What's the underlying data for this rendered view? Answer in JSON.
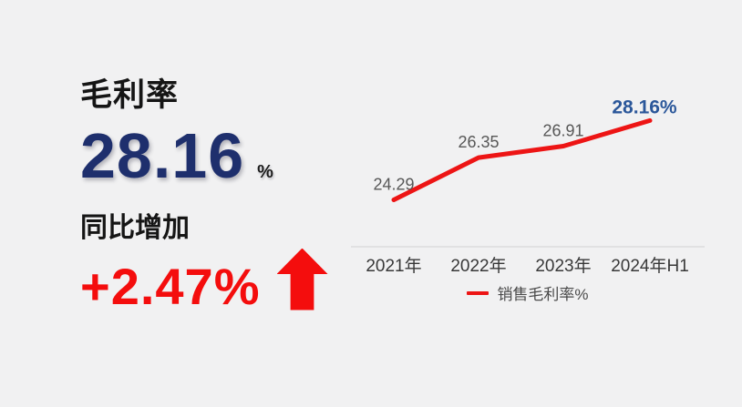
{
  "left": {
    "title": "毛利率",
    "value": "28.16",
    "unit": "%",
    "change_label": "同比增加",
    "change_value": "+2.47%",
    "value_color": "#1e2f6d",
    "change_color": "#f40d0d"
  },
  "chart_data": {
    "type": "line",
    "categories": [
      "2021年",
      "2022年",
      "2023年",
      "2024年H1"
    ],
    "values": [
      24.29,
      26.35,
      26.91,
      28.16
    ],
    "series": [
      {
        "name": "销售毛利率%",
        "values": [
          24.29,
          26.35,
          26.91,
          28.16
        ]
      }
    ],
    "point_labels": [
      "24.29",
      "26.35",
      "26.91",
      "28.16%"
    ],
    "title": "",
    "xlabel": "",
    "ylabel": "",
    "ylim": [
      22,
      30
    ],
    "grid": false,
    "legend": "销售毛利率%",
    "legend_position": "bottom",
    "line_color": "#ed1515",
    "point_label_color": "#575757",
    "highlight_label_color": "#2b579a",
    "axis_line_color": "#dcdcdc",
    "tick_label_color": "#383838"
  }
}
